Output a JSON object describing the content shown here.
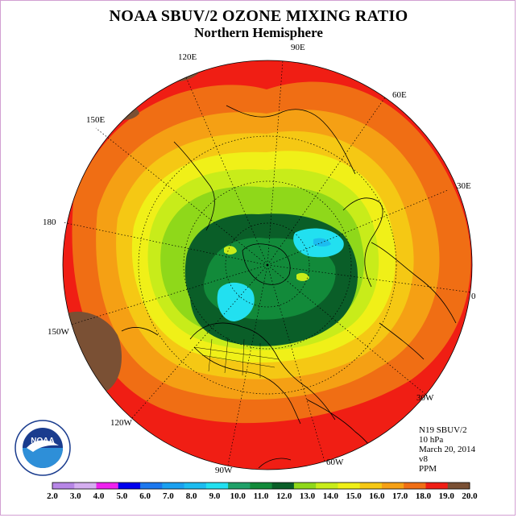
{
  "title": "NOAA SBUV/2 OZONE MIXING RATIO",
  "subtitle": "Northern Hemisphere",
  "longitude_labels": [
    "90E",
    "60E",
    "30E",
    "0",
    "30W",
    "60W",
    "90W",
    "120W",
    "150W",
    "180",
    "150E",
    "120E"
  ],
  "info": {
    "satellite": "N19 SBUV/2",
    "level": "10 hPa",
    "date": "March 20, 2014",
    "version": "v8",
    "units": "PPM"
  },
  "colorbar": {
    "ticks": [
      "2.0",
      "3.0",
      "4.0",
      "5.0",
      "6.0",
      "7.0",
      "8.0",
      "9.0",
      "10.0",
      "11.0",
      "12.0",
      "13.0",
      "14.0",
      "15.0",
      "16.0",
      "17.0",
      "18.0",
      "19.0",
      "20.0"
    ],
    "colors": [
      "#b786e6",
      "#d5aef0",
      "#ee22ee",
      "#0000ee",
      "#1c78ee",
      "#1aa0f0",
      "#1cbcf0",
      "#22e0f0",
      "#1fa068",
      "#128a3a",
      "#0a5e28",
      "#8fd81a",
      "#c8ec1a",
      "#f0f018",
      "#f5c814",
      "#f5a014",
      "#f06e14",
      "#f01e14",
      "#7a5034"
    ]
  },
  "logo": {
    "text": "NOAA",
    "ring_text": "NATIONAL OCEANIC AND ATMOSPHERIC ADMINISTRATION · U.S. DEPARTMENT OF COMMERCE",
    "colors": {
      "ring": "#ffffff",
      "sky": "#1a3c8e",
      "sea": "#2e8fd8",
      "bird": "#ffffff"
    }
  }
}
